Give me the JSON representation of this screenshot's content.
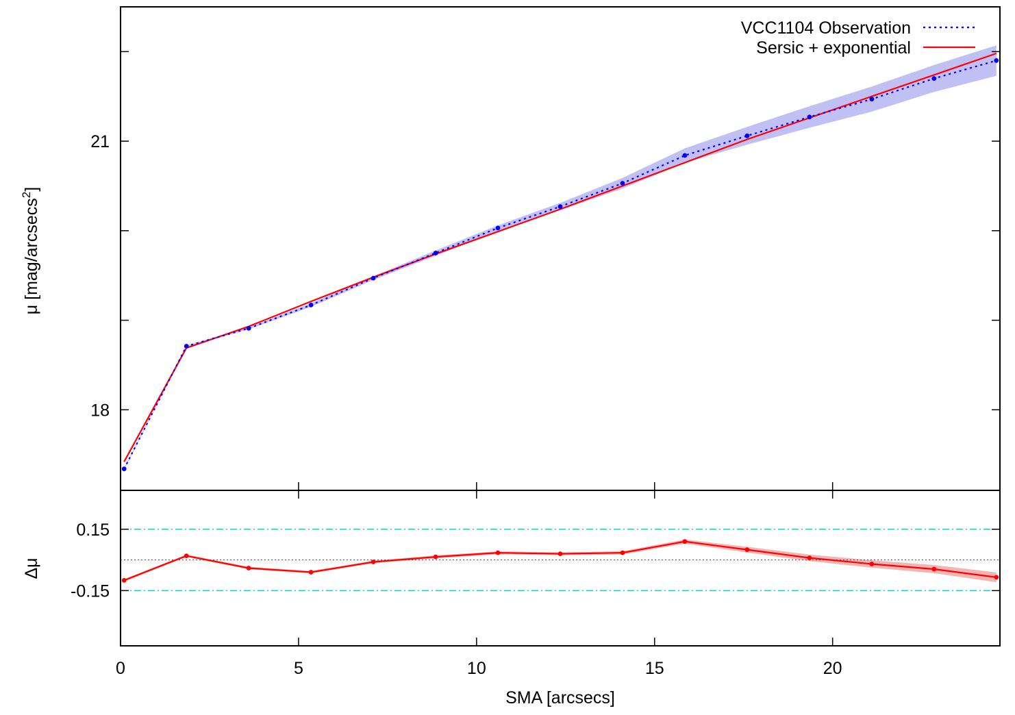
{
  "colors": {
    "observation": "#0000ff",
    "observation_band": "#c0c0f5",
    "fit": "#ff0000",
    "fit_band": "#f5b4b4",
    "threshold": "#00d8d8",
    "zero_line": "#555555",
    "axis": "#000000"
  },
  "chart_data": [
    {
      "type": "line",
      "ylabel_prefix": "μ [mag/arcsecs",
      "ylabel_sup": "2",
      "ylabel_suffix": "]",
      "xlim": [
        0,
        24.7
      ],
      "ylim": [
        22.5,
        17.1
      ],
      "y_inverted": true,
      "y_tick_labels": [
        {
          "value": 18,
          "label": "18"
        },
        {
          "value": 21,
          "label": "21"
        }
      ],
      "y_minor_ticks": [
        19,
        20,
        22
      ],
      "legend_position": "top-right",
      "series": [
        {
          "name": "VCC1104 Observation",
          "style": "dotted",
          "x": [
            0.1,
            1.85,
            3.6,
            5.35,
            7.1,
            8.85,
            10.6,
            12.35,
            14.1,
            15.85,
            17.6,
            19.35,
            21.1,
            22.85,
            24.6
          ],
          "values": [
            17.34,
            18.71,
            18.91,
            19.17,
            19.47,
            19.75,
            20.03,
            20.27,
            20.53,
            20.84,
            21.06,
            21.27,
            21.47,
            21.7,
            21.9
          ],
          "error": [
            0.01,
            0.01,
            0.01,
            0.02,
            0.02,
            0.03,
            0.03,
            0.04,
            0.06,
            0.08,
            0.1,
            0.12,
            0.14,
            0.15,
            0.17
          ]
        },
        {
          "name": "Sersic + exponential",
          "style": "solid",
          "x": [
            0.1,
            1.85,
            3.6,
            5.35,
            7.1,
            8.85,
            10.6,
            12.35,
            14.1,
            15.85,
            17.6,
            19.35,
            21.1,
            22.85,
            24.6
          ],
          "values": [
            17.42,
            18.69,
            18.93,
            19.21,
            19.48,
            19.74,
            19.99,
            20.24,
            20.5,
            20.76,
            21.02,
            21.26,
            21.5,
            21.74,
            21.98
          ]
        }
      ]
    },
    {
      "type": "line",
      "ylabel": "Δμ",
      "xlabel": "SMA [arcsecs]",
      "xlim": [
        0,
        24.7
      ],
      "ylim": [
        -0.42,
        0.34
      ],
      "x_tick_labels": [
        {
          "value": 0,
          "label": "0"
        },
        {
          "value": 5,
          "label": "5"
        },
        {
          "value": 10,
          "label": "10"
        },
        {
          "value": 15,
          "label": "15"
        },
        {
          "value": 20,
          "label": "20"
        }
      ],
      "y_tick_labels": [
        {
          "value": 0.15,
          "label": "0.15"
        },
        {
          "value": -0.15,
          "label": "-0.15"
        }
      ],
      "reference_lines": [
        {
          "value": 0.15,
          "style": "dash-dot"
        },
        {
          "value": 0,
          "style": "dotted"
        },
        {
          "value": -0.15,
          "style": "dash-dot"
        }
      ],
      "series": [
        {
          "style": "solid",
          "x": [
            0.1,
            1.85,
            3.6,
            5.35,
            7.1,
            8.85,
            10.6,
            12.35,
            14.1,
            15.85,
            17.6,
            19.35,
            21.1,
            22.85,
            24.6
          ],
          "values": [
            -0.1,
            0.02,
            -0.04,
            -0.06,
            -0.01,
            0.015,
            0.035,
            0.03,
            0.035,
            0.09,
            0.05,
            0.01,
            -0.02,
            -0.045,
            -0.085
          ],
          "error": [
            0.002,
            0.002,
            0.002,
            0.002,
            0.002,
            0.003,
            0.003,
            0.003,
            0.004,
            0.006,
            0.01,
            0.012,
            0.014,
            0.016,
            0.02
          ]
        }
      ]
    }
  ]
}
